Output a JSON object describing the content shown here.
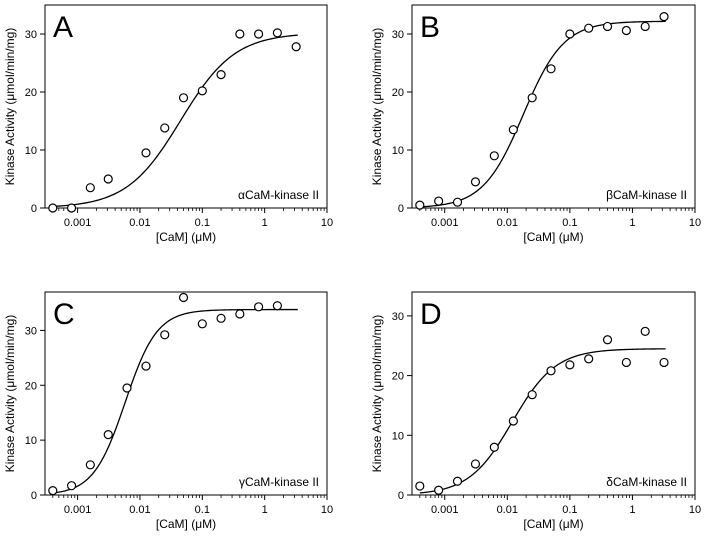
{
  "chart_data": [
    {
      "type": "scatter",
      "panel_label": "A",
      "annotation": "αCaM-kinase II",
      "xlabel": "[CaM] (μM)",
      "ylabel": "Kinase Activity (μmol/min/mg)",
      "xscale": "log",
      "xlim": [
        0.0003,
        10
      ],
      "ylim": [
        0,
        35
      ],
      "xticks": [
        0.001,
        0.01,
        0.1,
        1,
        10
      ],
      "xtick_labels": [
        "0.001",
        "0.01",
        "0.1",
        "1",
        "10"
      ],
      "yticks": [
        0,
        10,
        20,
        30
      ],
      "ytick_labels": [
        "0",
        "10",
        "20",
        "30"
      ],
      "points": {
        "x": [
          0.0004,
          0.0008,
          0.0016,
          0.0031,
          0.0125,
          0.025,
          0.05,
          0.1,
          0.2,
          0.4,
          0.8,
          1.6,
          3.2
        ],
        "y": [
          0,
          0,
          3.5,
          5,
          9.5,
          13.8,
          19,
          20.2,
          23,
          30,
          30,
          30.2,
          27.8
        ]
      },
      "fit": {
        "vmax": 30.2,
        "k": 0.045,
        "n": 1.0
      }
    },
    {
      "type": "scatter",
      "panel_label": "B",
      "annotation": "βCaM-kinase II",
      "xlabel": "[CaM] (μM)",
      "ylabel": "Kinase Activity (μmol/min/mg)",
      "xscale": "log",
      "xlim": [
        0.0003,
        10
      ],
      "ylim": [
        0,
        35
      ],
      "xticks": [
        0.001,
        0.01,
        0.1,
        1,
        10
      ],
      "xtick_labels": [
        "0.001",
        "0.01",
        "0.1",
        "1",
        "10"
      ],
      "yticks": [
        0,
        10,
        20,
        30
      ],
      "ytick_labels": [
        "0",
        "10",
        "20",
        "30"
      ],
      "points": {
        "x": [
          0.0004,
          0.0008,
          0.0016,
          0.0031,
          0.0062,
          0.0125,
          0.025,
          0.05,
          0.1,
          0.2,
          0.4,
          0.8,
          1.6,
          3.2
        ],
        "y": [
          0.5,
          1.2,
          1,
          4.5,
          9,
          13.5,
          19,
          24,
          30,
          31,
          31.3,
          30.6,
          31.3,
          33
        ]
      },
      "fit": {
        "vmax": 32.2,
        "k": 0.018,
        "n": 1.35
      }
    },
    {
      "type": "scatter",
      "panel_label": "C",
      "annotation": "γCaM-kinase II",
      "xlabel": "[CaM] (μM)",
      "ylabel": "Kinase Activity (μmol/min/mg)",
      "xscale": "log",
      "xlim": [
        0.0003,
        10
      ],
      "ylim": [
        0,
        37
      ],
      "xticks": [
        0.001,
        0.01,
        0.1,
        1,
        10
      ],
      "xtick_labels": [
        "0.001",
        "0.01",
        "0.1",
        "1",
        "10"
      ],
      "yticks": [
        0,
        10,
        20,
        30
      ],
      "ytick_labels": [
        "0",
        "10",
        "20",
        "30"
      ],
      "points": {
        "x": [
          0.0004,
          0.0008,
          0.0016,
          0.0031,
          0.0062,
          0.0125,
          0.025,
          0.05,
          0.1,
          0.2,
          0.4,
          0.8,
          1.6
        ],
        "y": [
          0.8,
          1.7,
          5.5,
          11,
          19.5,
          23.5,
          29.2,
          36,
          31.2,
          32.2,
          33,
          34.3,
          34.5
        ]
      },
      "fit": {
        "vmax": 33.8,
        "k": 0.0058,
        "n": 1.7
      }
    },
    {
      "type": "scatter",
      "panel_label": "D",
      "annotation": "δCaM-kinase II",
      "xlabel": "[CaM] (μM)",
      "ylabel": "Kinase Activity (μmol/min/mg)",
      "xscale": "log",
      "xlim": [
        0.0003,
        10
      ],
      "ylim": [
        0,
        34
      ],
      "xticks": [
        0.001,
        0.01,
        0.1,
        1,
        10
      ],
      "xtick_labels": [
        "0.001",
        "0.01",
        "0.1",
        "1",
        "10"
      ],
      "yticks": [
        0,
        10,
        20,
        30
      ],
      "ytick_labels": [
        "0",
        "10",
        "20",
        "30"
      ],
      "points": {
        "x": [
          0.0004,
          0.0008,
          0.0016,
          0.0031,
          0.0062,
          0.0125,
          0.025,
          0.05,
          0.1,
          0.2,
          0.4,
          0.8,
          1.6,
          3.2
        ],
        "y": [
          1.5,
          0.8,
          2.3,
          5.2,
          8,
          12.4,
          16.8,
          20.8,
          21.8,
          22.8,
          26,
          22.2,
          27.4,
          22.2
        ]
      },
      "fit": {
        "vmax": 24.5,
        "k": 0.012,
        "n": 1.25
      }
    }
  ]
}
